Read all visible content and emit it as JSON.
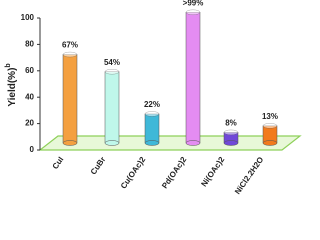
{
  "chart_data": {
    "type": "bar",
    "y_label": "Yield(%)",
    "y_label_sup": "b",
    "categories": [
      "CuI",
      "CuBr",
      "Cu(OAc)2",
      "Pd(OAc)2",
      "Ni(OAc)2",
      "NiCl2.2H2O"
    ],
    "values": [
      67,
      54,
      22,
      99,
      8,
      13
    ],
    "value_labels": [
      "67%",
      "54%",
      "22%",
      ">99%",
      "8%",
      "13%"
    ],
    "colors": [
      "#f4a040",
      "#bff7ea",
      "#3fb8d8",
      "#e48cf2",
      "#7048d8",
      "#f27a1c"
    ],
    "ylim": [
      0,
      100
    ],
    "yticks": [
      0,
      20,
      40,
      60,
      80,
      100
    ]
  }
}
